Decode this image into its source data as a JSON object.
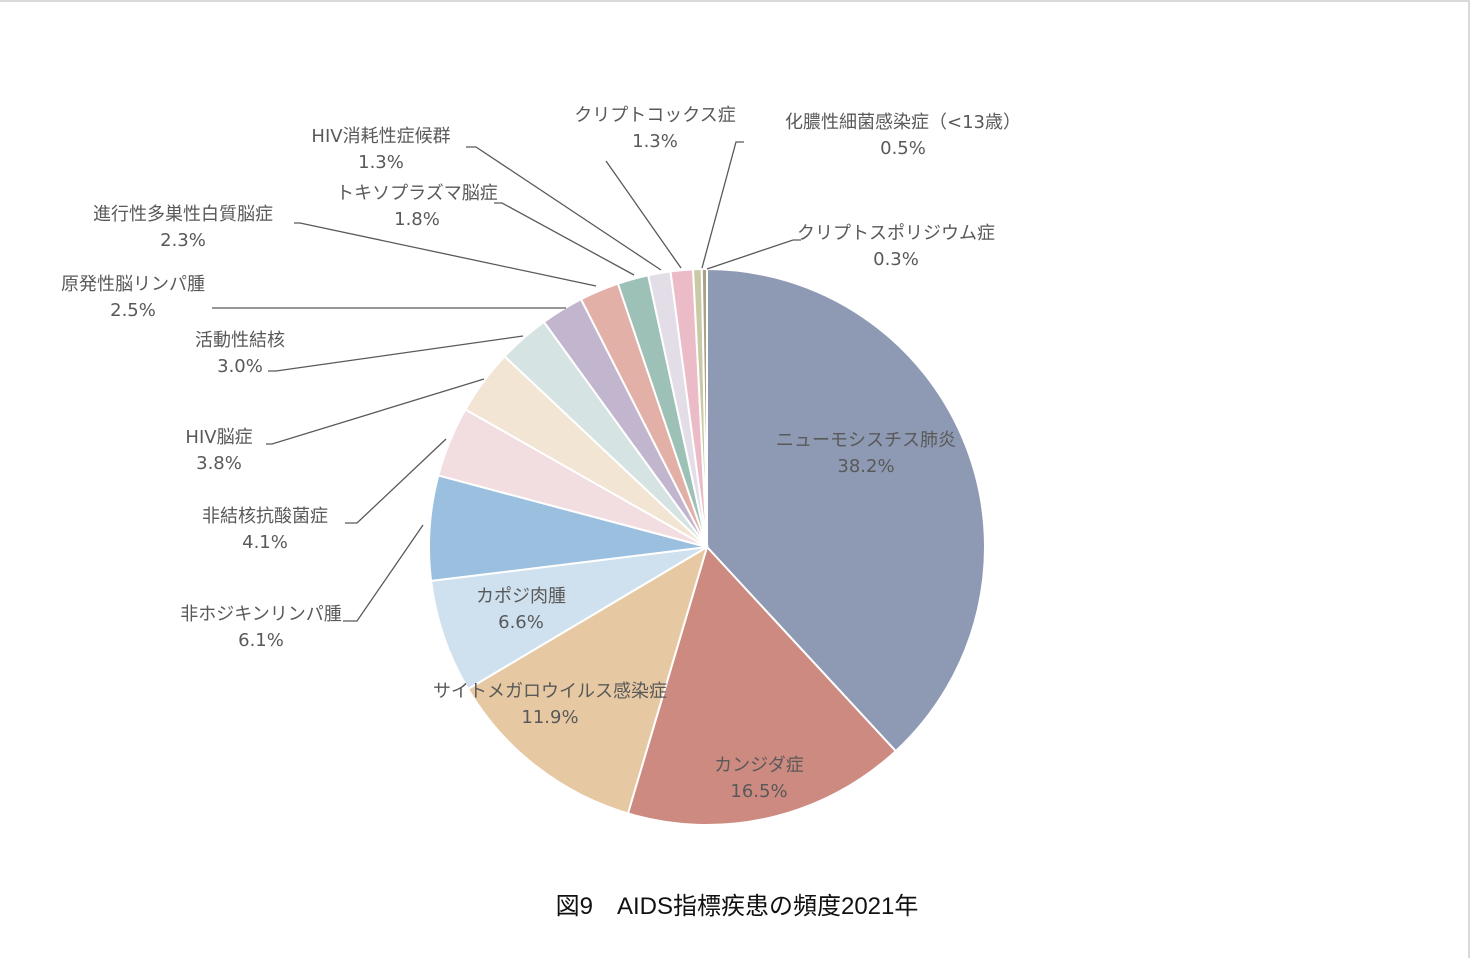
{
  "caption": "図9　AIDS指標疾患の頻度2021年",
  "chart_data": {
    "type": "pie",
    "title": "",
    "unit": "%",
    "slices": [
      {
        "label": "ニューモシスチス肺炎",
        "value_text": "38.2%",
        "value": 38.2,
        "color": "#8e99b3"
      },
      {
        "label": "カンジダ症",
        "value_text": "16.5%",
        "value": 16.5,
        "color": "#cd8a80"
      },
      {
        "label": "サイトメガロウイルス感染症",
        "value_text": "11.9%",
        "value": 11.9,
        "color": "#e6c9a3"
      },
      {
        "label": "カポジ肉腫",
        "value_text": "6.6%",
        "value": 6.6,
        "color": "#cfe1ef"
      },
      {
        "label": "非ホジキンリンパ腫",
        "value_text": "6.1%",
        "value": 6.1,
        "color": "#9bbfdf"
      },
      {
        "label": "非結核抗酸菌症",
        "value_text": "4.1%",
        "value": 4.1,
        "color": "#f2dde1"
      },
      {
        "label": "HIV脳症",
        "value_text": "3.8%",
        "value": 3.8,
        "color": "#f3e5d3"
      },
      {
        "label": "活動性結核",
        "value_text": "3.0%",
        "value": 3.0,
        "color": "#d6e3e3"
      },
      {
        "label": "原発性脳リンパ腫",
        "value_text": "2.5%",
        "value": 2.5,
        "color": "#c2b6cf"
      },
      {
        "label": "進行性多巣性白質脳症",
        "value_text": "2.3%",
        "value": 2.3,
        "color": "#e2b0a6"
      },
      {
        "label": "トキソプラズマ脳症",
        "value_text": "1.8%",
        "value": 1.8,
        "color": "#9ec1b7"
      },
      {
        "label": "HIV消耗性症候群",
        "value_text": "1.3%",
        "value": 1.3,
        "color": "#e2dde6"
      },
      {
        "label": "クリプトコックス症",
        "value_text": "1.3%",
        "value": 1.3,
        "color": "#ebbcc7"
      },
      {
        "label": "化膿性細菌感染症（<13歳）",
        "value_text": "0.5%",
        "value": 0.5,
        "color": "#c9c9a6"
      },
      {
        "label": "クリプトスポリジウム症",
        "value_text": "0.3%",
        "value": 0.3,
        "color": "#a9a286"
      }
    ]
  }
}
